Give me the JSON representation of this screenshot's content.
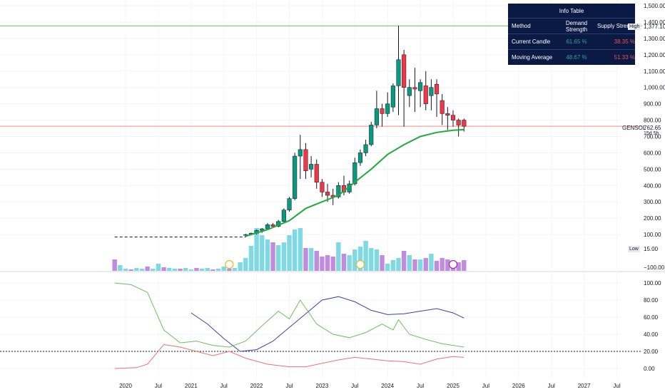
{
  "symbol": "GENSOL",
  "last_price": "762.65",
  "countdown": "15d 5h",
  "high_label": "High",
  "high_value": "1,377.10",
  "low_label": "Low",
  "low_value": "15.00",
  "colors": {
    "up": "#089981",
    "down": "#f23645",
    "sma": "#22ab3d",
    "vol_up": "#7ed9e3",
    "vol_down": "#c18be0",
    "high_line": "#6cbf5a",
    "last_line": "#f08a8a",
    "osc_blue": "#3f3fa0",
    "osc_green": "#6cbf5a",
    "osc_red": "#f07070"
  },
  "price_axis_labels": [
    "1,500.00",
    "1,400.00",
    "1,300.00",
    "1,200.00",
    "1,100.00",
    "1,000.00",
    "900.00",
    "800.00",
    "700.00",
    "600.00",
    "500.00",
    "400.00",
    "300.00",
    "200.00",
    "100.00",
    "−100.00"
  ],
  "osc_axis_labels": [
    "100.00",
    "80.00",
    "60.00",
    "40.00",
    "20.00",
    "0.00"
  ],
  "time_labels": [
    "2020",
    "Jul",
    "2021",
    "Jul",
    "2022",
    "Jul",
    "2023",
    "Jul",
    "2024",
    "Jul",
    "2025",
    "Jul",
    "2026",
    "Jul",
    "2027",
    "Jul"
  ],
  "info_table": {
    "title": "Info Table",
    "headers": [
      "Method",
      "Demand Strength",
      "Supply Strength"
    ],
    "rows": [
      {
        "method": "Current Candle",
        "demand": "61.65 %",
        "supply": "38.35 %"
      },
      {
        "method": "Moving Average",
        "demand": "48.67 %",
        "supply": "51.33 %"
      }
    ]
  },
  "chart_data": {
    "type": "candlestick",
    "interval": "monthly",
    "candles": [
      {
        "t": "2021-11",
        "o": 95,
        "h": 105,
        "l": 85,
        "c": 100
      },
      {
        "t": "2021-12",
        "o": 100,
        "h": 112,
        "l": 95,
        "c": 108
      },
      {
        "t": "2022-01",
        "o": 108,
        "h": 130,
        "l": 100,
        "c": 125
      },
      {
        "t": "2022-02",
        "o": 125,
        "h": 140,
        "l": 110,
        "c": 135
      },
      {
        "t": "2022-03",
        "o": 135,
        "h": 170,
        "l": 130,
        "c": 160
      },
      {
        "t": "2022-04",
        "o": 160,
        "h": 170,
        "l": 140,
        "c": 150
      },
      {
        "t": "2022-05",
        "o": 150,
        "h": 190,
        "l": 145,
        "c": 180
      },
      {
        "t": "2022-06",
        "o": 180,
        "h": 260,
        "l": 175,
        "c": 250
      },
      {
        "t": "2022-07",
        "o": 250,
        "h": 330,
        "l": 240,
        "c": 320
      },
      {
        "t": "2022-08",
        "o": 320,
        "h": 600,
        "l": 310,
        "c": 580
      },
      {
        "t": "2022-09",
        "o": 580,
        "h": 710,
        "l": 440,
        "c": 620
      },
      {
        "t": "2022-10",
        "o": 620,
        "h": 660,
        "l": 440,
        "c": 490
      },
      {
        "t": "2022-11",
        "o": 500,
        "h": 580,
        "l": 450,
        "c": 530
      },
      {
        "t": "2022-12",
        "o": 530,
        "h": 560,
        "l": 380,
        "c": 420
      },
      {
        "t": "2023-01",
        "o": 420,
        "h": 440,
        "l": 330,
        "c": 360
      },
      {
        "t": "2023-02",
        "o": 360,
        "h": 410,
        "l": 300,
        "c": 340
      },
      {
        "t": "2023-03",
        "o": 340,
        "h": 380,
        "l": 280,
        "c": 330
      },
      {
        "t": "2023-04",
        "o": 330,
        "h": 420,
        "l": 320,
        "c": 400
      },
      {
        "t": "2023-05",
        "o": 400,
        "h": 460,
        "l": 340,
        "c": 360
      },
      {
        "t": "2023-06",
        "o": 360,
        "h": 430,
        "l": 350,
        "c": 410
      },
      {
        "t": "2023-07",
        "o": 410,
        "h": 570,
        "l": 400,
        "c": 540
      },
      {
        "t": "2023-08",
        "o": 540,
        "h": 620,
        "l": 520,
        "c": 600
      },
      {
        "t": "2023-09",
        "o": 600,
        "h": 680,
        "l": 580,
        "c": 650
      },
      {
        "t": "2023-10",
        "o": 650,
        "h": 790,
        "l": 640,
        "c": 770
      },
      {
        "t": "2023-11",
        "o": 770,
        "h": 980,
        "l": 750,
        "c": 870
      },
      {
        "t": "2023-12",
        "o": 870,
        "h": 900,
        "l": 760,
        "c": 840
      },
      {
        "t": "2024-01",
        "o": 840,
        "h": 970,
        "l": 820,
        "c": 900
      },
      {
        "t": "2024-02",
        "o": 880,
        "h": 1025,
        "l": 850,
        "c": 1010
      },
      {
        "t": "2024-03",
        "o": 1010,
        "h": 1377,
        "l": 830,
        "c": 1170
      },
      {
        "t": "2024-04",
        "o": 1200,
        "h": 1230,
        "l": 760,
        "c": 1000
      },
      {
        "t": "2024-05",
        "o": 950,
        "h": 1050,
        "l": 880,
        "c": 1000
      },
      {
        "t": "2024-06",
        "o": 1000,
        "h": 1120,
        "l": 850,
        "c": 990
      },
      {
        "t": "2024-07",
        "o": 980,
        "h": 1050,
        "l": 880,
        "c": 1030
      },
      {
        "t": "2024-08",
        "o": 1010,
        "h": 1100,
        "l": 860,
        "c": 900
      },
      {
        "t": "2024-09",
        "o": 950,
        "h": 1050,
        "l": 860,
        "c": 1000
      },
      {
        "t": "2024-10",
        "o": 1020,
        "h": 1050,
        "l": 820,
        "c": 960
      },
      {
        "t": "2024-11",
        "o": 920,
        "h": 960,
        "l": 770,
        "c": 840
      },
      {
        "t": "2024-12",
        "o": 840,
        "h": 880,
        "l": 740,
        "c": 830
      },
      {
        "t": "2025-01",
        "o": 830,
        "h": 860,
        "l": 760,
        "c": 800
      },
      {
        "t": "2025-02",
        "o": 800,
        "h": 810,
        "l": 700,
        "c": 770
      },
      {
        "t": "2025-03",
        "o": 800,
        "h": 810,
        "l": 730,
        "c": 762.65
      }
    ],
    "sma": [
      {
        "t": "2021-11",
        "v": 90
      },
      {
        "t": "2022-03",
        "v": 130
      },
      {
        "t": "2022-07",
        "v": 185
      },
      {
        "t": "2022-10",
        "v": 260
      },
      {
        "t": "2023-01",
        "v": 300
      },
      {
        "t": "2023-04",
        "v": 340
      },
      {
        "t": "2023-07",
        "v": 420
      },
      {
        "t": "2023-10",
        "v": 500
      },
      {
        "t": "2024-01",
        "v": 590
      },
      {
        "t": "2024-04",
        "v": 650
      },
      {
        "t": "2024-07",
        "v": 700
      },
      {
        "t": "2024-10",
        "v": 725
      },
      {
        "t": "2025-01",
        "v": 738
      },
      {
        "t": "2025-03",
        "v": 742
      }
    ],
    "dashed_price": 85,
    "horizontal_lines": {
      "high": 1377.1,
      "last": 762.65
    },
    "oscillator": {
      "ylim": [
        0,
        100
      ],
      "dotted_level": 20,
      "series": [
        {
          "color": "blue",
          "values": [
            {
              "t": "2021-01",
              "v": 65
            },
            {
              "t": "2021-04",
              "v": 52
            },
            {
              "t": "2021-07",
              "v": 35
            },
            {
              "t": "2021-10",
              "v": 20
            },
            {
              "t": "2022-01",
              "v": 22
            },
            {
              "t": "2022-04",
              "v": 32
            },
            {
              "t": "2022-07",
              "v": 48
            },
            {
              "t": "2022-10",
              "v": 64
            },
            {
              "t": "2023-01",
              "v": 80
            },
            {
              "t": "2023-04",
              "v": 84
            },
            {
              "t": "2023-07",
              "v": 78
            },
            {
              "t": "2023-10",
              "v": 68
            },
            {
              "t": "2024-01",
              "v": 63
            },
            {
              "t": "2024-04",
              "v": 64
            },
            {
              "t": "2024-07",
              "v": 67
            },
            {
              "t": "2024-10",
              "v": 70
            },
            {
              "t": "2025-01",
              "v": 65
            },
            {
              "t": "2025-03",
              "v": 59
            }
          ]
        },
        {
          "color": "green",
          "values": [
            {
              "t": "2019-11",
              "v": 100
            },
            {
              "t": "2020-02",
              "v": 98
            },
            {
              "t": "2020-05",
              "v": 89
            },
            {
              "t": "2020-08",
              "v": 45
            },
            {
              "t": "2020-11",
              "v": 30
            },
            {
              "t": "2021-02",
              "v": 32
            },
            {
              "t": "2021-05",
              "v": 27
            },
            {
              "t": "2021-08",
              "v": 25
            },
            {
              "t": "2021-11",
              "v": 32
            },
            {
              "t": "2022-02",
              "v": 50
            },
            {
              "t": "2022-05",
              "v": 67
            },
            {
              "t": "2022-07",
              "v": 58
            },
            {
              "t": "2022-09",
              "v": 80
            },
            {
              "t": "2022-12",
              "v": 52
            },
            {
              "t": "2023-03",
              "v": 40
            },
            {
              "t": "2023-06",
              "v": 36
            },
            {
              "t": "2023-09",
              "v": 42
            },
            {
              "t": "2023-12",
              "v": 52
            },
            {
              "t": "2024-02",
              "v": 45
            },
            {
              "t": "2024-03",
              "v": 57
            },
            {
              "t": "2024-05",
              "v": 40
            },
            {
              "t": "2024-08",
              "v": 34
            },
            {
              "t": "2024-11",
              "v": 29
            },
            {
              "t": "2025-03",
              "v": 25
            }
          ]
        },
        {
          "color": "red",
          "values": [
            {
              "t": "2019-11",
              "v": 0
            },
            {
              "t": "2020-03",
              "v": 1
            },
            {
              "t": "2020-05",
              "v": 5
            },
            {
              "t": "2020-08",
              "v": 28
            },
            {
              "t": "2020-11",
              "v": 25
            },
            {
              "t": "2021-02",
              "v": 20
            },
            {
              "t": "2021-05",
              "v": 15
            },
            {
              "t": "2021-08",
              "v": 20
            },
            {
              "t": "2021-11",
              "v": 12
            },
            {
              "t": "2022-03",
              "v": 5
            },
            {
              "t": "2022-07",
              "v": 2
            },
            {
              "t": "2022-10",
              "v": 2
            },
            {
              "t": "2023-01",
              "v": 6
            },
            {
              "t": "2023-04",
              "v": 10
            },
            {
              "t": "2023-07",
              "v": 13
            },
            {
              "t": "2023-10",
              "v": 11
            },
            {
              "t": "2024-01",
              "v": 9
            },
            {
              "t": "2024-04",
              "v": 8
            },
            {
              "t": "2024-07",
              "v": 5
            },
            {
              "t": "2024-10",
              "v": 11
            },
            {
              "t": "2025-01",
              "v": 14
            },
            {
              "t": "2025-03",
              "v": 13
            }
          ]
        }
      ]
    }
  }
}
